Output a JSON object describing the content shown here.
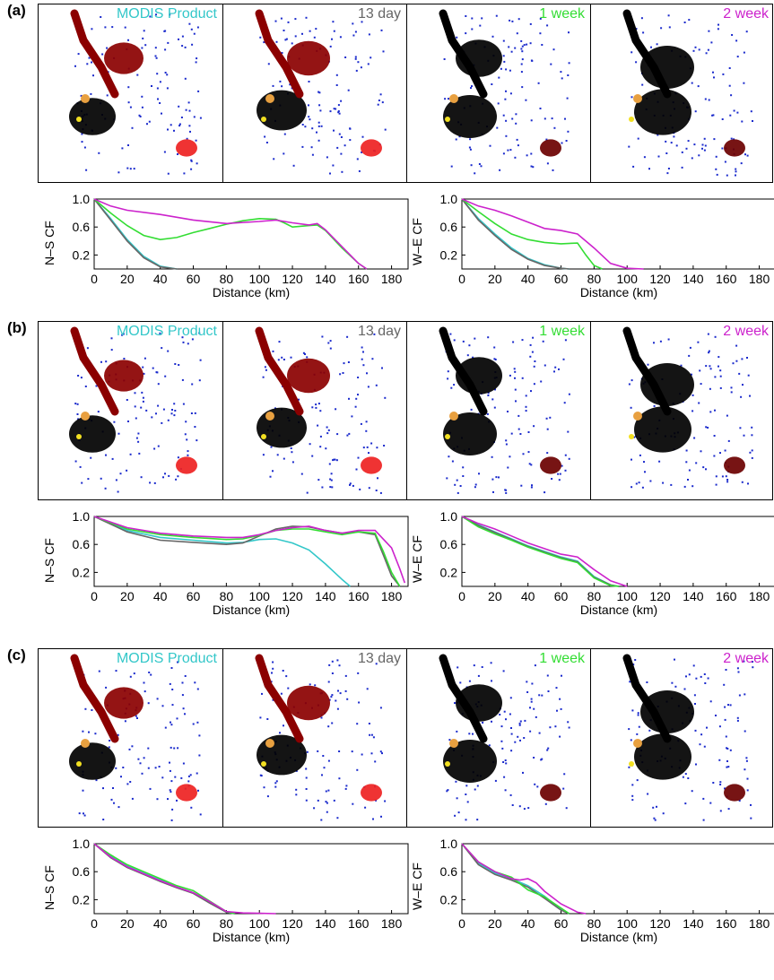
{
  "colors": {
    "MODIS Product": "#33c7c9",
    "13 day": "#666666",
    "1 week": "#33dd33",
    "2 week": "#cc22cc"
  },
  "map_titles": [
    "MODIS Product",
    "13 day",
    "1 week",
    "2 week"
  ],
  "panels": [
    {
      "label": "(a)",
      "chart_data": [
        {
          "type": "line",
          "ylabel": "N–S CF",
          "xlabel": "Distance (km)",
          "xlim": [
            0,
            190
          ],
          "ylim": [
            0,
            1.0
          ],
          "xticks": [
            0,
            20,
            40,
            60,
            80,
            100,
            120,
            140,
            160,
            180
          ],
          "yticks": [
            0.2,
            0.6,
            1.0
          ],
          "series": [
            {
              "name": "MODIS Product",
              "x": [
                0,
                10,
                20,
                30,
                40,
                50
              ],
              "y": [
                1.0,
                0.72,
                0.42,
                0.18,
                0.04,
                0.0
              ]
            },
            {
              "name": "13 day",
              "x": [
                0,
                10,
                20,
                30,
                40,
                50
              ],
              "y": [
                1.0,
                0.7,
                0.4,
                0.16,
                0.03,
                0.0
              ]
            },
            {
              "name": "1 week",
              "x": [
                0,
                10,
                20,
                30,
                40,
                50,
                60,
                70,
                80,
                90,
                100,
                110,
                115,
                120,
                130,
                135,
                140,
                150,
                160,
                165
              ],
              "y": [
                1.0,
                0.8,
                0.62,
                0.48,
                0.42,
                0.45,
                0.52,
                0.58,
                0.64,
                0.69,
                0.72,
                0.71,
                0.66,
                0.6,
                0.62,
                0.63,
                0.55,
                0.3,
                0.08,
                0.0
              ]
            },
            {
              "name": "2 week",
              "x": [
                0,
                10,
                20,
                40,
                60,
                80,
                100,
                110,
                120,
                130,
                135,
                140,
                150,
                160,
                165
              ],
              "y": [
                1.0,
                0.9,
                0.84,
                0.78,
                0.7,
                0.65,
                0.68,
                0.7,
                0.66,
                0.63,
                0.65,
                0.56,
                0.32,
                0.08,
                0.0
              ]
            }
          ]
        },
        {
          "type": "line",
          "ylabel": "W–E CF",
          "xlabel": "Distance (km)",
          "xlim": [
            0,
            190
          ],
          "ylim": [
            0,
            1.0
          ],
          "xticks": [
            0,
            20,
            40,
            60,
            80,
            100,
            120,
            140,
            160,
            180
          ],
          "yticks": [
            0.2,
            0.6,
            1.0
          ],
          "series": [
            {
              "name": "MODIS Product",
              "x": [
                0,
                10,
                20,
                30,
                40,
                50,
                60,
                65
              ],
              "y": [
                1.0,
                0.72,
                0.5,
                0.3,
                0.15,
                0.06,
                0.01,
                0.0
              ]
            },
            {
              "name": "13 day",
              "x": [
                0,
                10,
                20,
                30,
                40,
                50,
                60,
                65
              ],
              "y": [
                1.0,
                0.7,
                0.48,
                0.28,
                0.14,
                0.05,
                0.01,
                0.0
              ]
            },
            {
              "name": "1 week",
              "x": [
                0,
                10,
                20,
                30,
                40,
                50,
                60,
                70,
                75,
                80,
                85
              ],
              "y": [
                1.0,
                0.82,
                0.65,
                0.5,
                0.42,
                0.38,
                0.36,
                0.37,
                0.2,
                0.05,
                0.0
              ]
            },
            {
              "name": "2 week",
              "x": [
                0,
                10,
                20,
                30,
                40,
                50,
                60,
                70,
                80,
                90,
                100,
                110
              ],
              "y": [
                1.0,
                0.9,
                0.84,
                0.76,
                0.67,
                0.58,
                0.55,
                0.5,
                0.3,
                0.08,
                0.01,
                0.0
              ]
            }
          ]
        }
      ]
    },
    {
      "label": "(b)",
      "chart_data": [
        {
          "type": "line",
          "ylabel": "N–S CF",
          "xlabel": "Distance (km)",
          "xlim": [
            0,
            190
          ],
          "ylim": [
            0,
            1.0
          ],
          "xticks": [
            0,
            20,
            40,
            60,
            80,
            100,
            120,
            140,
            160,
            180
          ],
          "yticks": [
            0.2,
            0.6,
            1.0
          ],
          "series": [
            {
              "name": "MODIS Product",
              "x": [
                0,
                20,
                40,
                60,
                80,
                90,
                100,
                110,
                120,
                130,
                140,
                150,
                155
              ],
              "y": [
                1.0,
                0.8,
                0.7,
                0.66,
                0.62,
                0.63,
                0.67,
                0.68,
                0.62,
                0.52,
                0.32,
                0.1,
                0.0
              ]
            },
            {
              "name": "13 day",
              "x": [
                0,
                20,
                40,
                60,
                80,
                90,
                100,
                110,
                120,
                130,
                140,
                150,
                160,
                170,
                175,
                180,
                185
              ],
              "y": [
                1.0,
                0.78,
                0.66,
                0.63,
                0.6,
                0.62,
                0.72,
                0.82,
                0.86,
                0.85,
                0.8,
                0.76,
                0.78,
                0.74,
                0.45,
                0.15,
                0.0
              ]
            },
            {
              "name": "1 week",
              "x": [
                0,
                20,
                40,
                60,
                80,
                90,
                100,
                110,
                120,
                130,
                140,
                150,
                160,
                170,
                175,
                180,
                185
              ],
              "y": [
                1.0,
                0.82,
                0.74,
                0.7,
                0.67,
                0.68,
                0.73,
                0.8,
                0.82,
                0.82,
                0.78,
                0.74,
                0.78,
                0.76,
                0.5,
                0.2,
                0.0
              ]
            },
            {
              "name": "2 week",
              "x": [
                0,
                20,
                40,
                60,
                80,
                90,
                100,
                110,
                120,
                130,
                140,
                150,
                160,
                170,
                180,
                185,
                188
              ],
              "y": [
                1.0,
                0.84,
                0.76,
                0.72,
                0.7,
                0.7,
                0.74,
                0.8,
                0.84,
                0.86,
                0.8,
                0.76,
                0.8,
                0.8,
                0.55,
                0.25,
                0.05
              ]
            }
          ]
        },
        {
          "type": "line",
          "ylabel": "W–E CF",
          "xlabel": "Distance (km)",
          "xlim": [
            0,
            190
          ],
          "ylim": [
            0,
            1.0
          ],
          "xticks": [
            0,
            20,
            40,
            60,
            80,
            100,
            120,
            140,
            160,
            180
          ],
          "yticks": [
            0.2,
            0.6,
            1.0
          ],
          "series": [
            {
              "name": "MODIS Product",
              "x": [
                0,
                10,
                20,
                30,
                40,
                50,
                60,
                70,
                80,
                90,
                95
              ],
              "y": [
                1.0,
                0.88,
                0.78,
                0.68,
                0.58,
                0.5,
                0.42,
                0.36,
                0.14,
                0.02,
                0.0
              ]
            },
            {
              "name": "13 day",
              "x": [
                0,
                10,
                20,
                30,
                40,
                50,
                60,
                70,
                80,
                90,
                95
              ],
              "y": [
                1.0,
                0.87,
                0.77,
                0.67,
                0.57,
                0.49,
                0.41,
                0.35,
                0.13,
                0.02,
                0.0
              ]
            },
            {
              "name": "1 week",
              "x": [
                0,
                10,
                20,
                30,
                40,
                50,
                60,
                70,
                80,
                90,
                95
              ],
              "y": [
                1.0,
                0.85,
                0.75,
                0.66,
                0.56,
                0.48,
                0.4,
                0.34,
                0.12,
                0.01,
                0.0
              ]
            },
            {
              "name": "2 week",
              "x": [
                0,
                10,
                20,
                30,
                40,
                50,
                60,
                70,
                80,
                90,
                100
              ],
              "y": [
                1.0,
                0.9,
                0.82,
                0.72,
                0.62,
                0.54,
                0.46,
                0.42,
                0.24,
                0.08,
                0.0
              ]
            }
          ]
        }
      ]
    },
    {
      "label": "(c)",
      "chart_data": [
        {
          "type": "line",
          "ylabel": "N–S CF",
          "xlabel": "Distance (km)",
          "xlim": [
            0,
            190
          ],
          "ylim": [
            0,
            1.0
          ],
          "xticks": [
            0,
            20,
            40,
            60,
            80,
            100,
            120,
            140,
            160,
            180
          ],
          "yticks": [
            0.2,
            0.6,
            1.0
          ],
          "series": [
            {
              "name": "MODIS Product",
              "x": [
                0,
                10,
                20,
                30,
                40,
                50,
                60,
                70,
                80,
                85
              ],
              "y": [
                1.0,
                0.82,
                0.68,
                0.58,
                0.48,
                0.38,
                0.3,
                0.16,
                0.02,
                0.0
              ]
            },
            {
              "name": "13 day",
              "x": [
                0,
                10,
                20,
                30,
                40,
                50,
                60,
                70,
                80,
                85
              ],
              "y": [
                1.0,
                0.8,
                0.66,
                0.56,
                0.46,
                0.37,
                0.29,
                0.15,
                0.02,
                0.0
              ]
            },
            {
              "name": "1 week",
              "x": [
                0,
                10,
                20,
                30,
                40,
                50,
                60,
                70,
                80,
                85
              ],
              "y": [
                1.0,
                0.84,
                0.7,
                0.6,
                0.5,
                0.4,
                0.33,
                0.18,
                0.03,
                0.0
              ]
            },
            {
              "name": "2 week",
              "x": [
                0,
                10,
                20,
                30,
                40,
                50,
                60,
                70,
                80,
                90,
                100,
                110
              ],
              "y": [
                1.0,
                0.81,
                0.67,
                0.57,
                0.47,
                0.38,
                0.3,
                0.17,
                0.03,
                0.01,
                0.005,
                0.0
              ]
            }
          ]
        },
        {
          "type": "line",
          "ylabel": "W–E CF",
          "xlabel": "Distance (km)",
          "xlim": [
            0,
            190
          ],
          "ylim": [
            0,
            1.0
          ],
          "xticks": [
            0,
            20,
            40,
            60,
            80,
            100,
            120,
            140,
            160,
            180
          ],
          "yticks": [
            0.2,
            0.6,
            1.0
          ],
          "series": [
            {
              "name": "MODIS Product",
              "x": [
                0,
                10,
                20,
                30,
                40,
                50,
                60,
                65
              ],
              "y": [
                1.0,
                0.72,
                0.58,
                0.5,
                0.4,
                0.25,
                0.06,
                0.0
              ]
            },
            {
              "name": "13 day",
              "x": [
                0,
                10,
                20,
                30,
                40,
                50,
                60,
                65
              ],
              "y": [
                1.0,
                0.7,
                0.56,
                0.48,
                0.38,
                0.22,
                0.05,
                0.0
              ]
            },
            {
              "name": "1 week",
              "x": [
                0,
                10,
                20,
                30,
                40,
                50,
                60,
                65
              ],
              "y": [
                1.0,
                0.74,
                0.6,
                0.52,
                0.34,
                0.24,
                0.08,
                0.0
              ]
            },
            {
              "name": "2 week",
              "x": [
                0,
                10,
                20,
                30,
                35,
                40,
                45,
                50,
                60,
                70,
                75
              ],
              "y": [
                1.0,
                0.74,
                0.6,
                0.5,
                0.48,
                0.5,
                0.44,
                0.32,
                0.14,
                0.02,
                0.0
              ]
            }
          ]
        }
      ]
    }
  ]
}
